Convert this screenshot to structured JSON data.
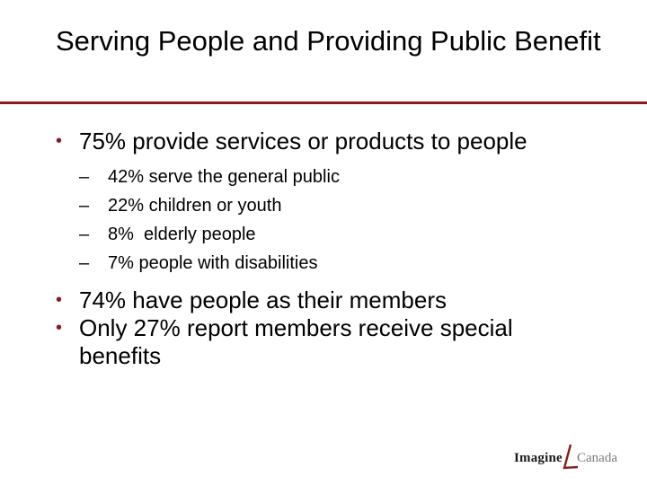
{
  "slide": {
    "title": "Serving People and Providing Public Benefit",
    "accent_color": "#8b1a1a"
  },
  "bullets": [
    {
      "text": "75% provide services or products to people",
      "sub_items": [
        "42% serve the general public",
        "22% children or youth",
        "8%  elderly people",
        "7% people with disabilities"
      ]
    },
    {
      "text": "74% have people as their members"
    },
    {
      "text": "Only 27% report members receive special benefits"
    }
  ],
  "bullet_marker": "•",
  "sub_bullet_marker": "–",
  "logo": {
    "primary": "Imagine",
    "secondary": "Canada"
  }
}
